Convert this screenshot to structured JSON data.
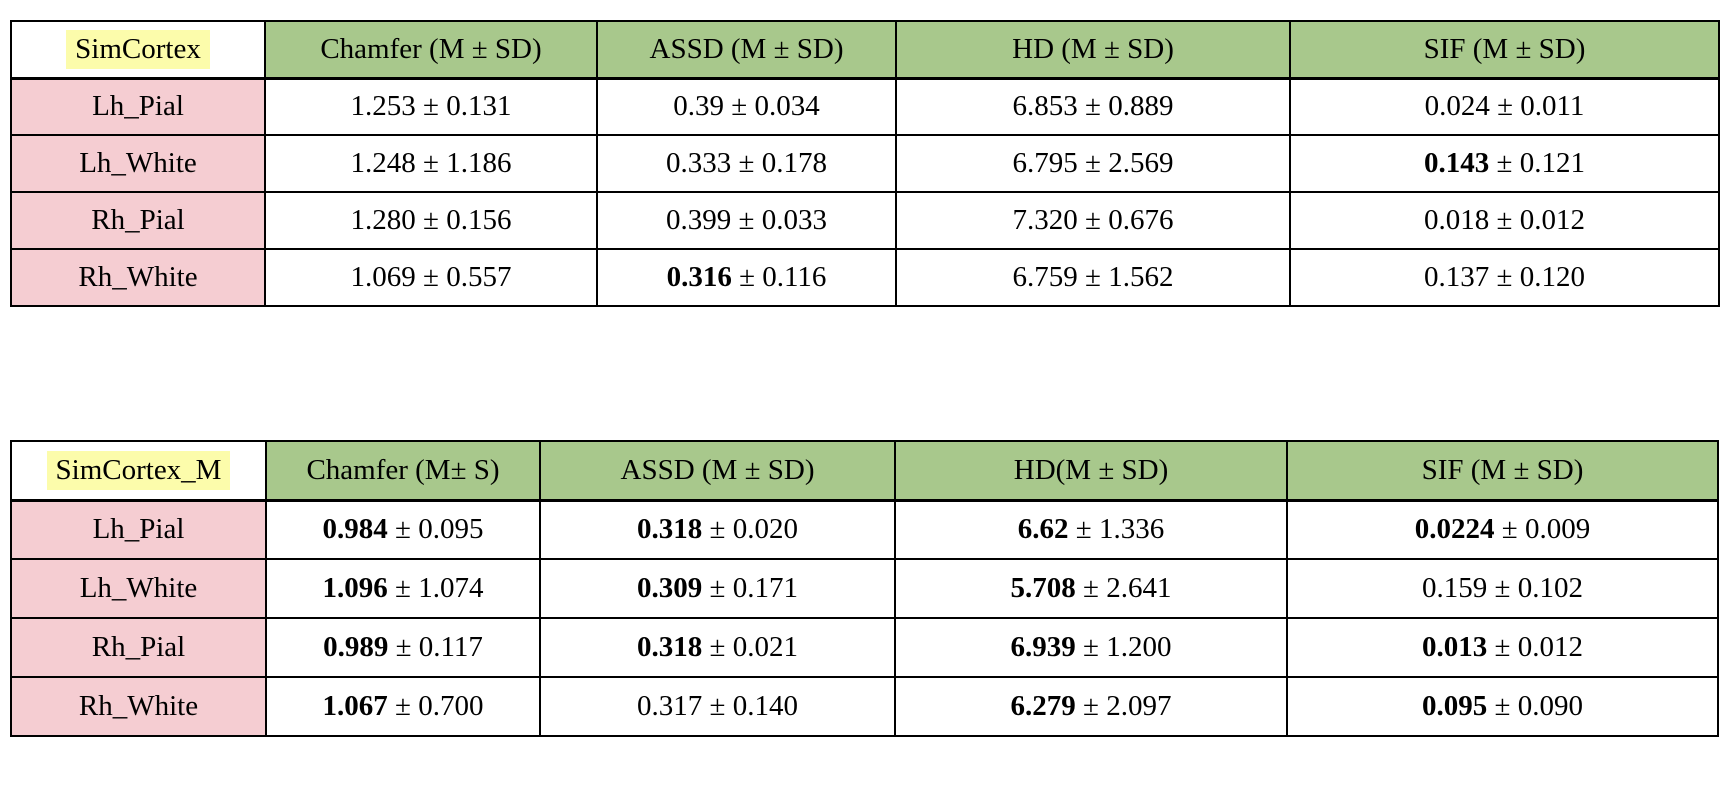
{
  "colors": {
    "background": "#ffffff",
    "header_fill": "#a8c88c",
    "row_label_fill": "#f5cdd2",
    "title_highlight": "#fcfcab",
    "border": "#000000"
  },
  "plus_minus_separator": " ± ",
  "tables": [
    {
      "title": "SimCortex",
      "columns": [
        "Chamfer (M ± SD)",
        "ASSD (M ± SD)",
        "HD (M ± SD)",
        "SIF (M ± SD)"
      ],
      "rows": [
        {
          "label": "Lh_Pial",
          "values": [
            {
              "mean": "1.253",
              "sd": "0.131",
              "mean_bold": false
            },
            {
              "mean": "0.39",
              "sd": "0.034",
              "mean_bold": false
            },
            {
              "mean": "6.853",
              "sd": "0.889",
              "mean_bold": false
            },
            {
              "mean": "0.024",
              "sd": "0.011",
              "mean_bold": false
            }
          ]
        },
        {
          "label": "Lh_White",
          "values": [
            {
              "mean": "1.248",
              "sd": "1.186",
              "mean_bold": false
            },
            {
              "mean": "0.333",
              "sd": "0.178",
              "mean_bold": false
            },
            {
              "mean": "6.795",
              "sd": "2.569",
              "mean_bold": false
            },
            {
              "mean": "0.143",
              "sd": "0.121",
              "mean_bold": true
            }
          ]
        },
        {
          "label": "Rh_Pial",
          "values": [
            {
              "mean": "1.280",
              "sd": "0.156",
              "mean_bold": false
            },
            {
              "mean": "0.399",
              "sd": "0.033",
              "mean_bold": false
            },
            {
              "mean": "7.320",
              "sd": "0.676",
              "mean_bold": false
            },
            {
              "mean": "0.018",
              "sd": "0.012",
              "mean_bold": false
            }
          ]
        },
        {
          "label": "Rh_White",
          "values": [
            {
              "mean": "1.069",
              "sd": "0.557",
              "mean_bold": false
            },
            {
              "mean": "0.316",
              "sd": "0.116",
              "mean_bold": true
            },
            {
              "mean": "6.759",
              "sd": "1.562",
              "mean_bold": false
            },
            {
              "mean": "0.137",
              "sd": "0.120",
              "mean_bold": false
            }
          ]
        }
      ]
    },
    {
      "title": "SimCortex_M",
      "columns": [
        "Chamfer (M± S)",
        "ASSD (M ± SD)",
        "HD(M ± SD)",
        "SIF (M ± SD)"
      ],
      "rows": [
        {
          "label": "Lh_Pial",
          "values": [
            {
              "mean": "0.984",
              "sd": "0.095",
              "mean_bold": true
            },
            {
              "mean": "0.318",
              "sd": "0.020",
              "mean_bold": true
            },
            {
              "mean": "6.62",
              "sd": "1.336",
              "mean_bold": true
            },
            {
              "mean": "0.0224",
              "sd": "0.009",
              "mean_bold": true
            }
          ]
        },
        {
          "label": "Lh_White",
          "values": [
            {
              "mean": "1.096",
              "sd": "1.074",
              "mean_bold": true
            },
            {
              "mean": "0.309",
              "sd": "0.171",
              "mean_bold": true
            },
            {
              "mean": "5.708",
              "sd": "2.641",
              "mean_bold": true
            },
            {
              "mean": "0.159",
              "sd": "0.102",
              "mean_bold": false
            }
          ]
        },
        {
          "label": "Rh_Pial",
          "values": [
            {
              "mean": "0.989",
              "sd": "0.117",
              "mean_bold": true
            },
            {
              "mean": "0.318",
              "sd": "0.021",
              "mean_bold": true
            },
            {
              "mean": "6.939",
              "sd": "1.200",
              "mean_bold": true
            },
            {
              "mean": "0.013",
              "sd": "0.012",
              "mean_bold": true
            }
          ]
        },
        {
          "label": "Rh_White",
          "values": [
            {
              "mean": "1.067",
              "sd": "0.700",
              "mean_bold": true
            },
            {
              "mean": "0.317",
              "sd": "0.140",
              "mean_bold": false
            },
            {
              "mean": "6.279",
              "sd": "2.097",
              "mean_bold": true
            },
            {
              "mean": "0.095",
              "sd": "0.090",
              "mean_bold": true
            }
          ]
        }
      ]
    }
  ]
}
